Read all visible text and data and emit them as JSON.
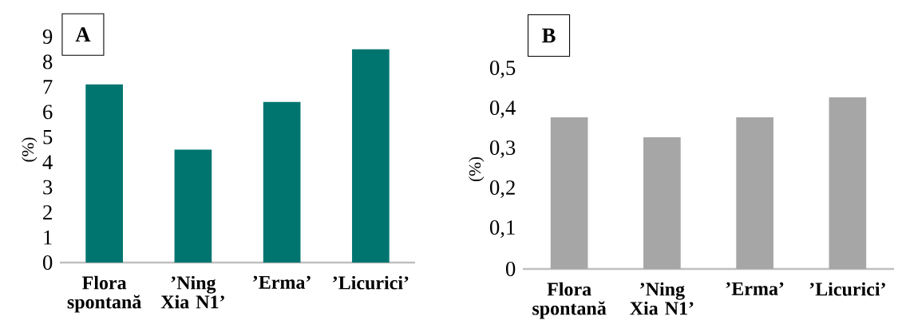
{
  "chart_data": [
    {
      "type": "bar",
      "title": "A",
      "ylabel": "(%)",
      "categories": [
        "Flora spontană",
        "’Ning Xia N1’",
        "’Erma’",
        "’Licurici’"
      ],
      "values": [
        7.1,
        4.5,
        6.4,
        8.5
      ],
      "color": "#00756f",
      "ylim": [
        0,
        9
      ],
      "yticks": [
        0,
        1,
        2,
        3,
        4,
        5,
        6,
        7,
        8,
        9
      ]
    },
    {
      "type": "bar",
      "title": "B",
      "ylabel": "(%)",
      "categories": [
        "Flora spontană",
        "’Ning Xia N1’",
        "’Erma’",
        "’Licurici’"
      ],
      "values": [
        0.38,
        0.33,
        0.38,
        0.43
      ],
      "color": "#a6a6a6",
      "ylim": [
        0,
        0.5
      ],
      "yticks": [
        0,
        {
          "value": 0.1,
          "label": "0,1"
        },
        {
          "value": 0.2,
          "label": "0,2"
        },
        {
          "value": 0.3,
          "label": "0,3"
        },
        {
          "value": 0.4,
          "label": "0,4"
        },
        {
          "value": 0.5,
          "label": "0,5"
        }
      ]
    }
  ]
}
